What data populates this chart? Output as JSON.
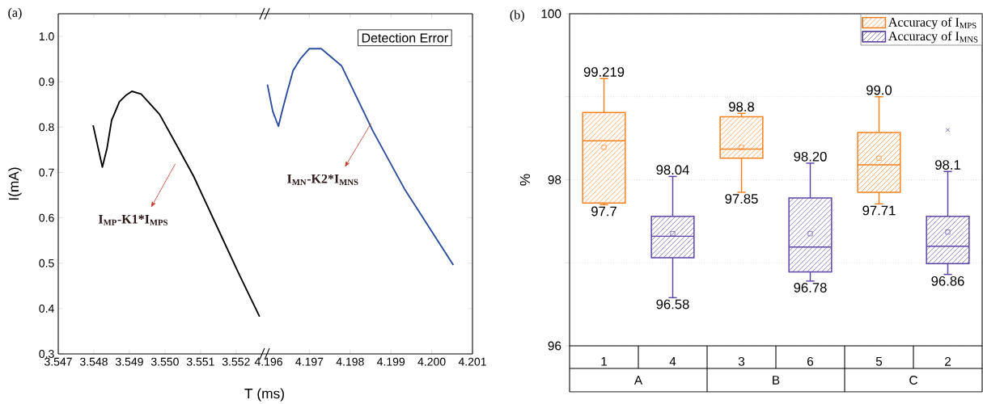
{
  "chart_data": [
    {
      "type": "line",
      "title": "(a)",
      "xlabel": "T (ms)",
      "ylabel": "I(mA)",
      "xlim": [
        3.547,
        3.5528
      ],
      "ylim": [
        0.3,
        1.05
      ],
      "xticks": [
        3.547,
        3.548,
        3.549,
        {
          "value": 3.55,
          "label": "3.550"
        },
        3.551,
        3.552
      ],
      "yticks": [
        0.3,
        0.4,
        0.5,
        0.6,
        0.7,
        0.8,
        0.9,
        {
          "value": 1.0,
          "label": "1.0"
        }
      ],
      "series": [
        {
          "color": "#000000",
          "x": [
            3.54798,
            3.54824,
            3.54837,
            3.5485,
            3.54872,
            3.5489,
            3.54907,
            3.54933,
            3.54985,
            3.55033,
            3.55081,
            3.55146,
            3.55207,
            3.55266
          ],
          "values": [
            0.804,
            0.712,
            0.753,
            0.815,
            0.856,
            0.87,
            0.879,
            0.873,
            0.828,
            0.76,
            0.691,
            0.581,
            0.478,
            0.382
          ]
        }
      ],
      "annotations": [
        "I$_{MP}$-K1*I$_{MPS}$"
      ]
    },
    {
      "type": "line",
      "xlim": [
        4.1959,
        4.201
      ],
      "ylim": [
        0.3,
        1.05
      ],
      "xticks": [
        4.196,
        4.197,
        4.198,
        4.199,
        {
          "value": 4.2,
          "label": "4.200"
        },
        4.201
      ],
      "yticks": [
        0.3,
        0.4,
        0.5,
        0.6,
        0.7,
        0.8,
        0.9,
        1.0
      ],
      "tick_labels": "x",
      "series": [
        {
          "color": "#2b4c9b",
          "x": [
            4.19597,
            4.1961,
            4.19624,
            4.19633,
            4.19645,
            4.1966,
            4.19679,
            4.197,
            4.19729,
            4.19779,
            4.19856,
            4.19933,
            4.20053
          ],
          "values": [
            0.894,
            0.835,
            0.802,
            0.835,
            0.876,
            0.925,
            0.952,
            0.973,
            0.973,
            0.935,
            0.791,
            0.664,
            0.496
          ]
        }
      ],
      "annotations": [
        "I$_{MN}$-K2*I$_{MNS}$",
        "Detection Error"
      ]
    },
    {
      "type": "box",
      "title": "(b)",
      "ylabel": "%",
      "categories": [
        "1",
        "4",
        "3",
        "6",
        "5",
        "2"
      ],
      "ylim": [
        96,
        100
      ],
      "yticks": [
        96,
        {
          "value": 97,
          "label": null
        },
        98,
        {
          "value": 99,
          "label": null
        },
        100
      ],
      "grid": "y",
      "legend": "top right",
      "series": [
        {
          "name": "Accuracy of I$_{MPS}$",
          "color": "#f5811f",
          "boxes": [
            {
              "low": 97.7,
              "q1": 97.72,
              "median": 98.47,
              "q3": 98.81,
              "high": 99.219,
              "mean": 98.39
            },
            null,
            {
              "low": 97.85,
              "q1": 98.26,
              "median": 98.37,
              "q3": 98.76,
              "high": 98.8,
              "mean": 98.39
            },
            null,
            {
              "low": 97.71,
              "q1": 97.85,
              "median": 98.18,
              "q3": 98.57,
              "high": 99.0,
              "mean": 98.26
            },
            null
          ]
        },
        {
          "name": "Accuracy of I$_{MNS}$",
          "color": "#5c43a5",
          "boxes": [
            null,
            {
              "low": 96.58,
              "q1": 97.06,
              "median": 97.32,
              "q3": 97.56,
              "high": 98.04,
              "mean": 97.35
            },
            null,
            {
              "low": 96.78,
              "q1": 96.89,
              "median": 97.19,
              "q3": 97.78,
              "high": 98.2,
              "mean": 97.35
            },
            null,
            {
              "low": 96.86,
              "q1": 96.99,
              "median": 97.2,
              "q3": 97.56,
              "high": 98.1,
              "mean": 97.37,
              "outliers": [
                98.6
              ]
            }
          ]
        }
      ],
      "annotations": [
        {
          "text": "99.219",
          "x": "1",
          "y": 99.219
        },
        {
          "text": "97.7",
          "x": "1",
          "y": 97.7
        },
        {
          "text": "98.04",
          "x": "4",
          "y": 98.04
        },
        {
          "text": "96.58",
          "x": "4",
          "y": 96.58
        },
        {
          "text": "98.8",
          "x": "3",
          "y": 98.8
        },
        {
          "text": "97.85",
          "x": "3",
          "y": 97.85
        },
        {
          "text": "98.20",
          "x": "6",
          "y": 98.2
        },
        {
          "text": "96.78",
          "x": "6",
          "y": 96.78
        },
        {
          "text": "99.0",
          "x": "5",
          "y": 99.0
        },
        {
          "text": "97.71",
          "x": "5",
          "y": 97.71
        },
        {
          "text": "98.1",
          "x": "2",
          "y": 98.1
        },
        {
          "text": "96.86",
          "x": "2",
          "y": 96.86
        },
        "A",
        "B",
        "C"
      ]
    }
  ]
}
